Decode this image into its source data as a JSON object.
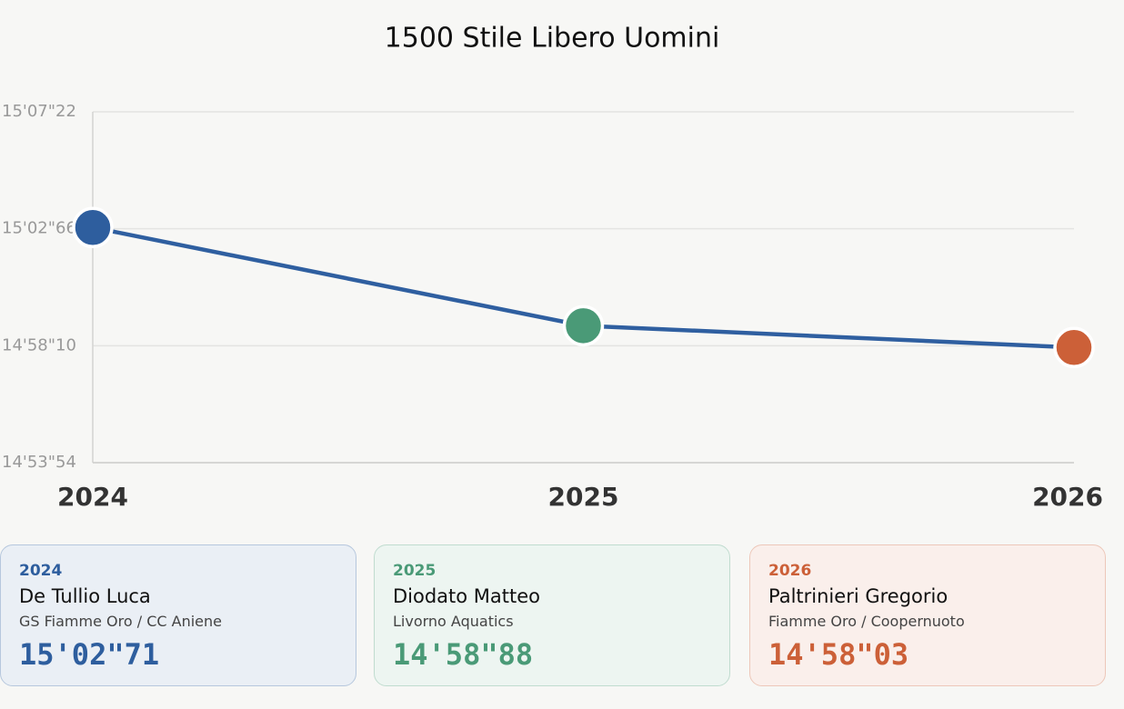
{
  "chart_data": {
    "type": "line",
    "title": "1500 Stile Libero Uomini",
    "categories": [
      "2024",
      "2025",
      "2026"
    ],
    "values": [
      902.71,
      898.88,
      898.03
    ],
    "value_labels": [
      "15'02\"71",
      "14'58\"88",
      "14'58\"03"
    ],
    "athletes": [
      "De Tullio Luca",
      "Diodato Matteo",
      "Paltrinieri Gregorio"
    ],
    "clubs": [
      "GS Fiamme Oro / CC Aniene",
      "Livorno Aquatics",
      "Fiamme Oro / Coopernuoto"
    ],
    "colors": [
      "#2e5e9e",
      "#4a9a77",
      "#cc6038"
    ],
    "line_color": "#2f5fa0",
    "ylim": [
      893.54,
      907.22
    ],
    "yticks": [
      {
        "value": 893.54,
        "label": "14'53\"54"
      },
      {
        "value": 898.1,
        "label": "14'58\"10"
      },
      {
        "value": 902.66,
        "label": "15'02\"66"
      },
      {
        "value": 907.22,
        "label": "15'07\"22"
      }
    ],
    "grid": true
  }
}
